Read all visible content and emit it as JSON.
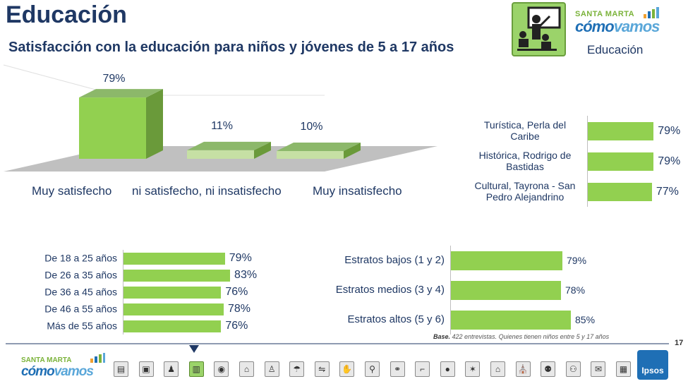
{
  "header": {
    "title": "Educación",
    "subtitle": "Satisfacción con la educación para niños y jóvenes de 5 a 17 años",
    "brand_top": "SANTA MARTA",
    "brand_main_a": "cómo",
    "brand_main_b": "vamos",
    "section": "Educación",
    "icon": "teacher-blackboard-icon"
  },
  "colors": {
    "bar": "#92d050",
    "text": "#1f3864",
    "floor": "#bfbfbf"
  },
  "chart_data": [
    {
      "type": "bar",
      "categories": [
        "Muy satisfecho",
        "ni satisfecho, ni insatisfecho",
        "Muy insatisfecho"
      ],
      "values": [
        79,
        11,
        10
      ],
      "labels": [
        "79%",
        "11%",
        "10%"
      ],
      "style": "3d"
    },
    {
      "type": "bar",
      "orientation": "horizontal",
      "categories": [
        "Turística, Perla del Caribe",
        "Histórica, Rodrigo de Bastidas",
        "Cultural, Tayrona - San Pedro Alejandrino"
      ],
      "values": [
        79,
        79,
        77
      ],
      "labels": [
        "79%",
        "79%",
        "77%"
      ]
    },
    {
      "type": "bar",
      "orientation": "horizontal",
      "categories": [
        "De 18 a 25 años",
        "De 26 a 35 años",
        "De 36 a 45 años",
        "De 46 a 55 años",
        "Más de 55 años"
      ],
      "values": [
        79,
        83,
        76,
        78,
        76
      ],
      "labels": [
        "79%",
        "83%",
        "76%",
        "78%",
        "76%"
      ]
    },
    {
      "type": "bar",
      "orientation": "horizontal",
      "categories": [
        "Estratos bajos (1 y 2)",
        "Estratos medios (3 y 4)",
        "Estratos altos (5 y 6)"
      ],
      "values": [
        79,
        78,
        85
      ],
      "labels": [
        "79%",
        "78%",
        "85%"
      ]
    }
  ],
  "footer": {
    "base_label": "Base.",
    "base_text": " 422 entrevistas. Quienes tienen niños entre 5 y 17 años",
    "page_number": "17",
    "brand_top": "SANTA MARTA",
    "brand_main_a": "cómo",
    "brand_main_b": "vamos",
    "ipsos": "Ipsos",
    "nav_icons": [
      "clipboard-icon",
      "teacher-icon",
      "family-icon",
      "education-icon",
      "doctor-icon",
      "house-icon",
      "police-icon",
      "water-tap-icon",
      "traffic-icon",
      "money-hand-icon",
      "bicycle-icon",
      "community-icon",
      "gun-icon",
      "meeting-icon",
      "handshake-icon",
      "government-icon",
      "church-icon",
      "people-icon",
      "parent-child-icon",
      "speech-icon",
      "presentation-icon"
    ],
    "active_nav": 4
  }
}
